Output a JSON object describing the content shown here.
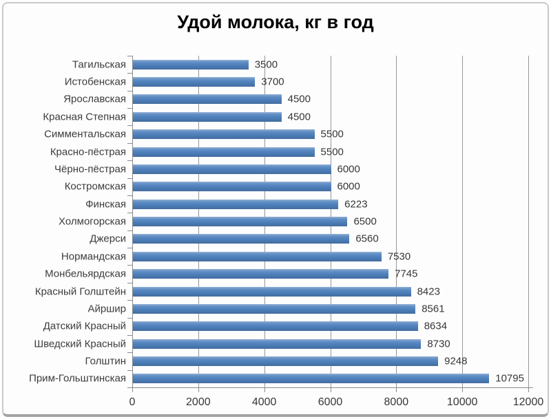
{
  "chart_data": {
    "type": "bar",
    "orientation": "horizontal",
    "title": "Удой молока, кг в год",
    "categories": [
      "Тагильская",
      "Истобенская",
      "Ярославская",
      "Красная Степная",
      "Симментальская",
      "Красно-пёстрая",
      "Чёрно-пёстрая",
      "Костромская",
      "Финская",
      "Холмогорская",
      "Джерси",
      "Нормандская",
      "Монбельярдская",
      "Красный Голштейн",
      "Айршир",
      "Датский Красный",
      "Шведский Красный",
      "Голштин",
      "Прим-Гольштинская"
    ],
    "values": [
      3500,
      3700,
      4500,
      4500,
      5500,
      5500,
      6000,
      6000,
      6223,
      6500,
      6560,
      7530,
      7745,
      8423,
      8561,
      8634,
      8730,
      9248,
      10795
    ],
    "data_labels": [
      "3500",
      "3700",
      "4500",
      "4500",
      "5500",
      "5500",
      "6000",
      "6000",
      "6223",
      "6500",
      "6560",
      "7530",
      "7745",
      "8423",
      "8561",
      "8634",
      "8730",
      "9248",
      "10795"
    ],
    "xlabel": "",
    "ylabel": "",
    "xlim": [
      0,
      12000
    ],
    "xticks": [
      0,
      2000,
      4000,
      6000,
      8000,
      10000,
      12000
    ],
    "xtick_labels": [
      "0",
      "2000",
      "4000",
      "6000",
      "8000",
      "10000",
      "12000"
    ],
    "grid": "vertical",
    "legend": "none",
    "bar_color": "#4f81bd",
    "gridline_color": "#969696",
    "axis_color": "#8a8a8a",
    "text_color": "#3c3c3c",
    "title_color": "#000000"
  }
}
